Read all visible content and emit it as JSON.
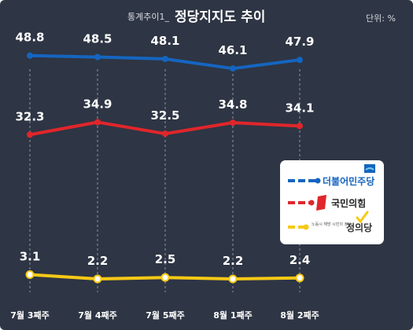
{
  "header": {
    "title_prefix": "통계추이1_",
    "title_main": "정당지지도 추이",
    "unit_label": "단위: %"
  },
  "colors": {
    "background": "#2e3544",
    "grid": "#8e94a3",
    "text": "#ffffff"
  },
  "chart_data": {
    "type": "line",
    "title": "통계추이1_정당지지도 추이",
    "xlabel": "",
    "ylabel": "",
    "unit": "단위: %",
    "categories": [
      "7월 3째주",
      "7월 4째주",
      "7월 5째주",
      "8월 1째주",
      "8월 2째주"
    ],
    "value_labels": {
      "s0": [
        "48.8",
        "48.5",
        "48.1",
        "46.1",
        "47.9"
      ],
      "s1": [
        "32.3",
        "34.9",
        "32.5",
        "34.8",
        "34.1"
      ],
      "s2": [
        "3.1",
        "2.2",
        "2.5",
        "2.2",
        "2.4"
      ]
    },
    "series": [
      {
        "name": "더불어민주당",
        "color": "#1565c0",
        "values": [
          48.8,
          48.5,
          48.1,
          46.1,
          47.9
        ]
      },
      {
        "name": "국민의힘",
        "color": "#e0262b",
        "values": [
          32.3,
          34.9,
          32.5,
          34.8,
          34.1
        ]
      },
      {
        "name": "정의당",
        "color": "#f6c915",
        "values": [
          3.1,
          2.2,
          2.5,
          2.2,
          2.4
        ]
      }
    ],
    "legend_position": "right",
    "grid": "vertical-dashed"
  },
  "legend": {
    "items": [
      {
        "label": "더불어민주당",
        "color": "#1565c0",
        "icon": "minjoo-flag-icon"
      },
      {
        "label": "국민의힘",
        "color": "#e0262b",
        "icon": "ppp-red-logo-icon"
      },
      {
        "label": "정의당",
        "color": "#f6c915",
        "icon": "justice-check-icon",
        "slogan": "노동시 해방 시민의 정당"
      }
    ]
  }
}
